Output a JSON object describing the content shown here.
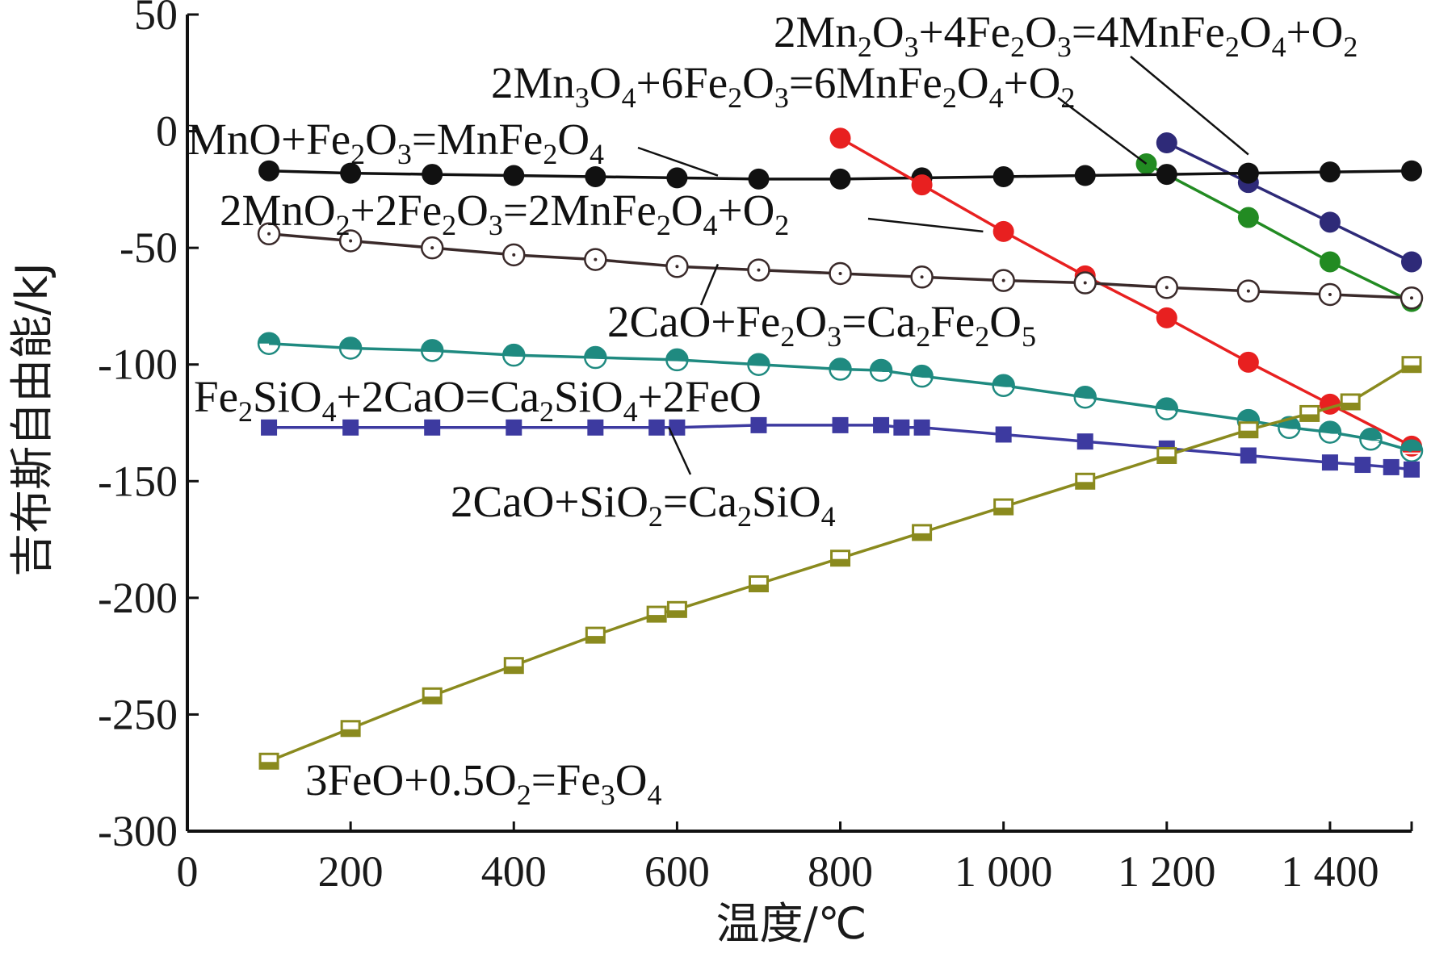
{
  "chart_data": {
    "type": "line",
    "xlabel": "温度/℃",
    "ylabel": "吉布斯自由能/kJ",
    "xlim": [
      0,
      1500
    ],
    "ylim": [
      -300,
      50
    ],
    "x_ticks": [
      {
        "value": 0,
        "label": "0"
      },
      {
        "value": 200,
        "label": "200"
      },
      {
        "value": 400,
        "label": "400"
      },
      {
        "value": 600,
        "label": "600"
      },
      {
        "value": 800,
        "label": "800"
      },
      {
        "value": 1000,
        "label": "1 000"
      },
      {
        "value": 1200,
        "label": "1 200"
      },
      {
        "value": 1400,
        "label": "1 400"
      }
    ],
    "y_ticks": [
      {
        "value": 50,
        "label": "50"
      },
      {
        "value": 0,
        "label": "0"
      },
      {
        "value": -50,
        "label": "-50"
      },
      {
        "value": -100,
        "label": "-100"
      },
      {
        "value": -150,
        "label": "-150"
      },
      {
        "value": -200,
        "label": "-200"
      },
      {
        "value": -250,
        "label": "-250"
      },
      {
        "value": -300,
        "label": "-300"
      }
    ],
    "series": [
      {
        "name": "2Mn₂O₃+4Fe₂O₃=4MnFe₂O₄+O₂",
        "color": "#2e2a78",
        "marker": "filled-circle",
        "x": [
          1200,
          1300,
          1400,
          1500
        ],
        "y": [
          -5,
          -22,
          -39,
          -56
        ]
      },
      {
        "name": "2Mn₃O₄+6Fe₂O₃=6MnFe₂O₄+O₂",
        "color": "#228b22",
        "marker": "filled-circle",
        "x": [
          1175,
          1300,
          1400,
          1500
        ],
        "y": [
          -14,
          -37,
          -56,
          -73
        ]
      },
      {
        "name": "MnO+Fe₂O₃=MnFe₂O₄",
        "color": "#111111",
        "marker": "filled-circle",
        "x": [
          100,
          200,
          300,
          400,
          500,
          600,
          700,
          800,
          900,
          1000,
          1100,
          1200,
          1300,
          1400,
          1500
        ],
        "y": [
          -17,
          -18,
          -18.5,
          -19,
          -19.5,
          -20,
          -20.5,
          -20.5,
          -20,
          -19.5,
          -19,
          -18.5,
          -18,
          -17.5,
          -17
        ]
      },
      {
        "name": "2MnO₂+2Fe₂O₃=2MnFe₂O₄+O₂",
        "color": "#e82020",
        "marker": "filled-circle",
        "x": [
          800,
          900,
          1000,
          1100,
          1200,
          1300,
          1400,
          1500
        ],
        "y": [
          -3,
          -23,
          -43,
          -62,
          -80,
          -99,
          -117,
          -135
        ]
      },
      {
        "name": "2CaO+Fe₂O₃=Ca₂Fe₂O₅",
        "color": "#3a2a2a",
        "marker": "open-circle",
        "x": [
          100,
          200,
          300,
          400,
          500,
          600,
          700,
          800,
          900,
          1000,
          1100,
          1200,
          1300,
          1400,
          1500
        ],
        "y": [
          -44,
          -47,
          -50,
          -53,
          -55,
          -58,
          -59.5,
          -61,
          -62.5,
          -64,
          -65,
          -67,
          -68.5,
          -70,
          -71.5
        ]
      },
      {
        "name": "Fe₂SiO₄+2CaO=Ca₂SiO₄+2FeO",
        "color": "#1f8a80",
        "marker": "half-circle",
        "x": [
          100,
          200,
          300,
          400,
          500,
          600,
          700,
          800,
          850,
          900,
          1000,
          1100,
          1200,
          1300,
          1350,
          1400,
          1450,
          1500
        ],
        "y": [
          -91,
          -93,
          -94,
          -96,
          -97,
          -98,
          -100,
          -102,
          -102.5,
          -105,
          -109,
          -114,
          -119,
          -124,
          -127,
          -129,
          -132,
          -137
        ]
      },
      {
        "name": "2CaO+SiO₂=Ca₂SiO₄",
        "color": "#3d3aa0",
        "marker": "filled-square",
        "x": [
          100,
          200,
          300,
          400,
          500,
          575,
          600,
          700,
          800,
          850,
          875,
          900,
          1000,
          1100,
          1200,
          1300,
          1400,
          1440,
          1475,
          1500
        ],
        "y": [
          -127,
          -127,
          -127,
          -127,
          -127,
          -127,
          -127,
          -126,
          -126,
          -126,
          -127,
          -127,
          -130,
          -133,
          -136,
          -139,
          -142,
          -143,
          -144,
          -145
        ]
      },
      {
        "name": "3FeO+0.5O₂=Fe₃O₄",
        "color": "#8a8a1e",
        "marker": "half-square",
        "x": [
          100,
          200,
          300,
          400,
          500,
          575,
          600,
          700,
          800,
          900,
          1000,
          1100,
          1200,
          1300,
          1375,
          1425,
          1500
        ],
        "y": [
          -270,
          -256,
          -242,
          -229,
          -216,
          -207,
          -205,
          -194,
          -183,
          -172,
          -161,
          -150,
          -139,
          -128,
          -121,
          -116,
          -100
        ]
      }
    ],
    "annotations": [
      {
        "id": "mn2o3",
        "parts": [
          [
            "2Mn",
            "n"
          ],
          [
            "2",
            "s"
          ],
          [
            "O",
            "n"
          ],
          [
            "3",
            "s"
          ],
          [
            "+4Fe",
            "n"
          ],
          [
            "2",
            "s"
          ],
          [
            "O",
            "n"
          ],
          [
            "3",
            "s"
          ],
          [
            "=4MnFe",
            "n"
          ],
          [
            "2",
            "s"
          ],
          [
            "O",
            "n"
          ],
          [
            "4",
            "s"
          ],
          [
            "+O",
            "n"
          ],
          [
            "2",
            "s"
          ]
        ],
        "series": 0,
        "x": 1300,
        "y": -10
      },
      {
        "id": "mn3o4",
        "parts": [
          [
            "2Mn",
            "n"
          ],
          [
            "3",
            "s"
          ],
          [
            "O",
            "n"
          ],
          [
            "4",
            "s"
          ],
          [
            "+6Fe",
            "n"
          ],
          [
            "2",
            "s"
          ],
          [
            "O",
            "n"
          ],
          [
            "3",
            "s"
          ],
          [
            "=6MnFe",
            "n"
          ],
          [
            "2",
            "s"
          ],
          [
            "O",
            "n"
          ],
          [
            "4",
            "s"
          ],
          [
            "+O",
            "n"
          ],
          [
            "2",
            "s"
          ]
        ],
        "series": 1,
        "x": 1175,
        "y": -14
      },
      {
        "id": "mno",
        "parts": [
          [
            "MnO+Fe",
            "n"
          ],
          [
            "2",
            "s"
          ],
          [
            "O",
            "n"
          ],
          [
            "3",
            "s"
          ],
          [
            "=MnFe",
            "n"
          ],
          [
            "2",
            "s"
          ],
          [
            "O",
            "n"
          ],
          [
            "4",
            "s"
          ]
        ],
        "series": 2,
        "x": 650,
        "y": -19
      },
      {
        "id": "mno2",
        "parts": [
          [
            "2MnO",
            "n"
          ],
          [
            "2",
            "s"
          ],
          [
            "+2Fe",
            "n"
          ],
          [
            "2",
            "s"
          ],
          [
            "O",
            "n"
          ],
          [
            "3",
            "s"
          ],
          [
            "=2MnFe",
            "n"
          ],
          [
            "2",
            "s"
          ],
          [
            "O",
            "n"
          ],
          [
            "4",
            "s"
          ],
          [
            "+O",
            "n"
          ],
          [
            "2",
            "s"
          ]
        ],
        "series": 3,
        "x": 975,
        "y": -43
      },
      {
        "id": "cao-fe2o3",
        "parts": [
          [
            "2CaO+Fe",
            "n"
          ],
          [
            "2",
            "s"
          ],
          [
            "O",
            "n"
          ],
          [
            "3",
            "s"
          ],
          [
            "=Ca",
            "n"
          ],
          [
            "2",
            "s"
          ],
          [
            "Fe",
            "n"
          ],
          [
            "2",
            "s"
          ],
          [
            "O",
            "n"
          ],
          [
            "5",
            "s"
          ]
        ],
        "series": 4,
        "x": 650,
        "y": -57
      },
      {
        "id": "fe2sio4",
        "parts": [
          [
            "Fe",
            "n"
          ],
          [
            "2",
            "s"
          ],
          [
            "SiO",
            "n"
          ],
          [
            "4",
            "s"
          ],
          [
            "+2CaO=Ca",
            "n"
          ],
          [
            "2",
            "s"
          ],
          [
            "SiO",
            "n"
          ],
          [
            "4",
            "s"
          ],
          [
            "+2FeO",
            "n"
          ]
        ],
        "series": 5,
        "x": null,
        "y": null
      },
      {
        "id": "cao-sio2",
        "parts": [
          [
            "2CaO+SiO",
            "n"
          ],
          [
            "2",
            "s"
          ],
          [
            "=Ca",
            "n"
          ],
          [
            "2",
            "s"
          ],
          [
            "SiO",
            "n"
          ],
          [
            "4",
            "s"
          ]
        ],
        "series": 6,
        "x": 590,
        "y": -127
      },
      {
        "id": "feo",
        "parts": [
          [
            "3FeO+0.5O",
            "n"
          ],
          [
            "2",
            "s"
          ],
          [
            "=Fe",
            "n"
          ],
          [
            "3",
            "s"
          ],
          [
            "O",
            "n"
          ],
          [
            "4",
            "s"
          ]
        ],
        "series": 7,
        "x": null,
        "y": null
      }
    ]
  }
}
